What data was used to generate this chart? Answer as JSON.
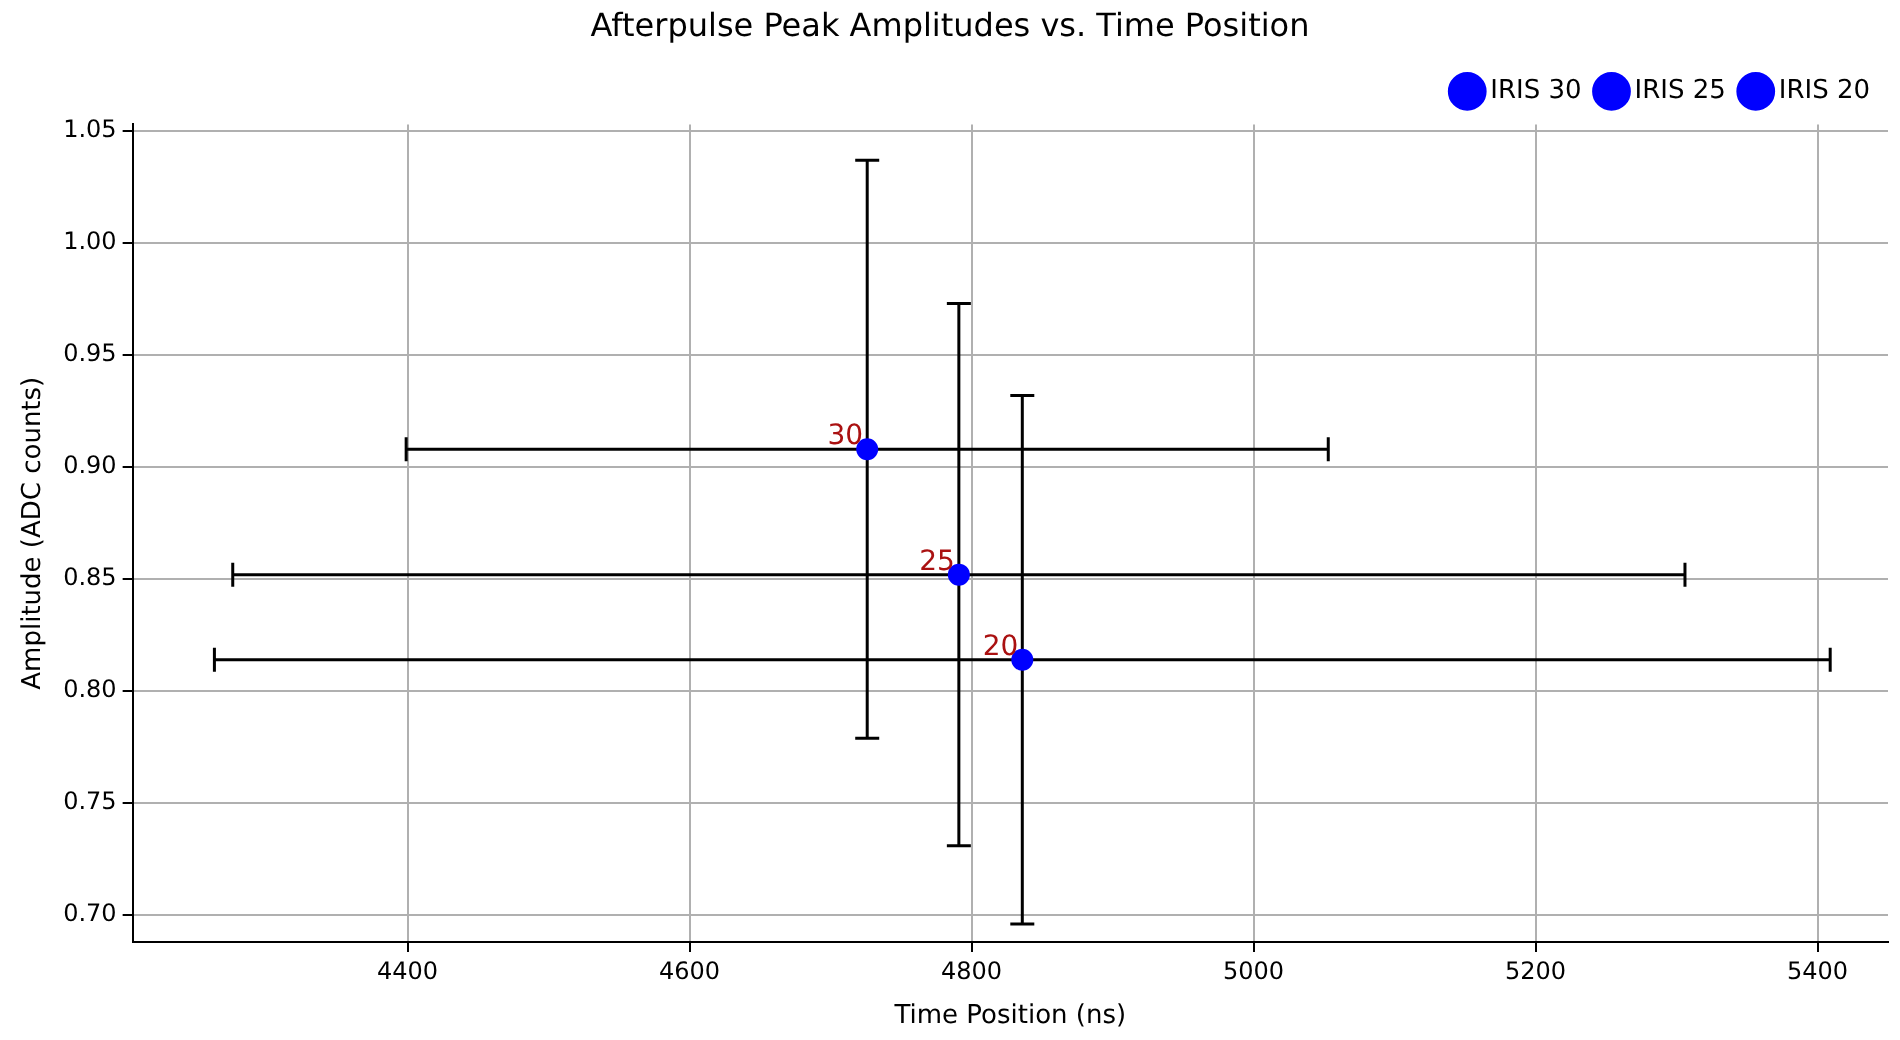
{
  "chart_data": {
    "type": "scatter",
    "title": "Afterpulse Peak Amplitudes vs. Time Position",
    "xlabel": "Time Position (ns)",
    "ylabel": "Amplitude (ADC counts)",
    "xlim": [
      4205,
      5450
    ],
    "xticks": [
      4400,
      4600,
      4800,
      5000,
      5200,
      5400
    ],
    "ylim": [
      0.688,
      1.053
    ],
    "yticks": [
      {
        "value": 0.7,
        "label": "0.70"
      },
      {
        "value": 0.75,
        "label": "0.75"
      },
      {
        "value": 0.8,
        "label": "0.80"
      },
      {
        "value": 0.85,
        "label": "0.85"
      },
      {
        "value": 0.9,
        "label": "0.90"
      },
      {
        "value": 0.95,
        "label": "0.95"
      },
      {
        "value": 1.0,
        "label": "1.00"
      },
      {
        "value": 1.05,
        "label": "1.05"
      }
    ],
    "grid": true,
    "legend": "top right",
    "marker": "circle",
    "series": [
      {
        "name": "IRIS 30",
        "color": "#0000ff",
        "x": [
          4726
        ],
        "values": [
          0.908
        ],
        "errors": [
          0.129
        ],
        "xerrors": [
          327
        ]
      },
      {
        "name": "IRIS 25",
        "color": "#0000ff",
        "x": [
          4791
        ],
        "values": [
          0.852
        ],
        "errors": [
          0.121
        ],
        "xerrors": [
          515
        ]
      },
      {
        "name": "IRIS 20",
        "color": "#0000ff",
        "x": [
          4836
        ],
        "values": [
          0.814
        ],
        "errors": [
          0.118
        ],
        "xerrors": [
          573
        ]
      }
    ],
    "annotations": [
      {
        "text": "30",
        "x": 4726,
        "y": 0.908
      },
      {
        "text": "25",
        "x": 4791,
        "y": 0.852
      },
      {
        "text": "20",
        "x": 4836,
        "y": 0.814
      }
    ]
  }
}
